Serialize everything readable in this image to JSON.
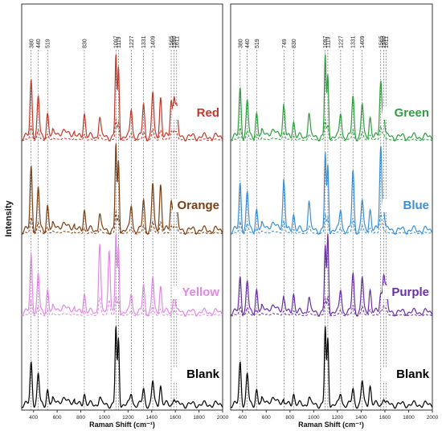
{
  "chart_data": {
    "type": "line",
    "ylabel": "Intensity",
    "colors": {
      "Red": "#c0392b",
      "Orange": "#7b3f14",
      "Yellow": "#e08ae6",
      "Blank": "#000000",
      "Green": "#2e9e3e",
      "Blue": "#3a8fd6",
      "Purple": "#6a2ea6"
    },
    "panels": [
      {
        "xlabel": "Raman Shift (cm⁻¹)",
        "xlim": [
          300,
          2000
        ],
        "xticks": [
          "400",
          "600",
          "800",
          "1000",
          "1200",
          "1400",
          "1600",
          "1800",
          "2000"
        ],
        "peak_labels": [
          "380",
          "440",
          "519",
          "830",
          "1097",
          "1119",
          "1227",
          "1331",
          "1409",
          "1565",
          "1590",
          "1611"
        ],
        "series": [
          {
            "name": "Red",
            "peaks": [
              [
                380,
                0.7
              ],
              [
                440,
                0.5
              ],
              [
                519,
                0.3
              ],
              [
                830,
                0.3
              ],
              [
                960,
                0.25
              ],
              [
                1097,
                1.0
              ],
              [
                1119,
                0.85
              ],
              [
                1227,
                0.35
              ],
              [
                1331,
                0.4
              ],
              [
                1409,
                0.55
              ],
              [
                1475,
                0.5
              ],
              [
                1565,
                0.45
              ],
              [
                1590,
                0.5
              ],
              [
                1611,
                0.35
              ]
            ]
          },
          {
            "name": "Orange",
            "peaks": [
              [
                380,
                0.75
              ],
              [
                440,
                0.5
              ],
              [
                519,
                0.3
              ],
              [
                830,
                0.25
              ],
              [
                960,
                0.2
              ],
              [
                1097,
                1.0
              ],
              [
                1119,
                0.8
              ],
              [
                1227,
                0.3
              ],
              [
                1331,
                0.35
              ],
              [
                1409,
                0.55
              ],
              [
                1475,
                0.55
              ],
              [
                1565,
                0.35
              ],
              [
                1590,
                0.35
              ],
              [
                1611,
                0.25
              ]
            ]
          },
          {
            "name": "Yellow",
            "peaks": [
              [
                380,
                0.75
              ],
              [
                440,
                0.5
              ],
              [
                519,
                0.3
              ],
              [
                830,
                0.25
              ],
              [
                960,
                0.9
              ],
              [
                1040,
                0.85
              ],
              [
                1097,
                1.0
              ],
              [
                1119,
                0.85
              ],
              [
                1227,
                0.25
              ],
              [
                1331,
                0.35
              ],
              [
                1409,
                0.45
              ],
              [
                1475,
                0.35
              ],
              [
                1590,
                0.3
              ]
            ]
          },
          {
            "name": "Blank",
            "peaks": [
              [
                380,
                0.55
              ],
              [
                440,
                0.4
              ],
              [
                519,
                0.2
              ],
              [
                830,
                0.15
              ],
              [
                960,
                0.1
              ],
              [
                1097,
                1.0
              ],
              [
                1119,
                0.85
              ],
              [
                1227,
                0.15
              ],
              [
                1331,
                0.2
              ],
              [
                1409,
                0.3
              ],
              [
                1475,
                0.25
              ],
              [
                1590,
                0.1
              ]
            ]
          }
        ]
      },
      {
        "xlabel": "Raman Shift (cm⁻¹)",
        "xlim": [
          300,
          2000
        ],
        "xticks": [
          "400",
          "600",
          "800",
          "1000",
          "1200",
          "1400",
          "1600",
          "1800",
          "2000"
        ],
        "peak_labels": [
          "380",
          "440",
          "519",
          "749",
          "830",
          "1097",
          "1119",
          "1227",
          "1331",
          "1409",
          "1565",
          "1590",
          "1611"
        ],
        "series": [
          {
            "name": "Green",
            "peaks": [
              [
                380,
                0.6
              ],
              [
                440,
                0.45
              ],
              [
                519,
                0.3
              ],
              [
                749,
                0.35
              ],
              [
                830,
                0.2
              ],
              [
                960,
                0.3
              ],
              [
                1097,
                1.0
              ],
              [
                1119,
                0.75
              ],
              [
                1227,
                0.3
              ],
              [
                1331,
                0.5
              ],
              [
                1409,
                0.4
              ],
              [
                1475,
                0.25
              ],
              [
                1565,
                0.7
              ],
              [
                1590,
                0.3
              ]
            ]
          },
          {
            "name": "Blue",
            "peaks": [
              [
                380,
                0.55
              ],
              [
                440,
                0.45
              ],
              [
                519,
                0.25
              ],
              [
                749,
                0.55
              ],
              [
                830,
                0.2
              ],
              [
                960,
                0.35
              ],
              [
                1097,
                0.9
              ],
              [
                1119,
                0.75
              ],
              [
                1227,
                0.25
              ],
              [
                1331,
                0.7
              ],
              [
                1409,
                0.35
              ],
              [
                1475,
                0.25
              ],
              [
                1565,
                1.0
              ],
              [
                1590,
                0.25
              ]
            ]
          },
          {
            "name": "Purple",
            "peaks": [
              [
                380,
                0.45
              ],
              [
                440,
                0.4
              ],
              [
                519,
                0.3
              ],
              [
                749,
                0.15
              ],
              [
                830,
                0.25
              ],
              [
                960,
                0.2
              ],
              [
                1097,
                0.85
              ],
              [
                1119,
                1.0
              ],
              [
                1227,
                0.3
              ],
              [
                1331,
                0.5
              ],
              [
                1409,
                0.45
              ],
              [
                1475,
                0.3
              ],
              [
                1565,
                0.25
              ],
              [
                1590,
                0.5
              ],
              [
                1611,
                0.3
              ]
            ]
          },
          {
            "name": "Blank",
            "peaks": [
              [
                380,
                0.55
              ],
              [
                440,
                0.4
              ],
              [
                519,
                0.2
              ],
              [
                830,
                0.15
              ],
              [
                960,
                0.1
              ],
              [
                1097,
                1.0
              ],
              [
                1119,
                0.85
              ],
              [
                1227,
                0.15
              ],
              [
                1331,
                0.2
              ],
              [
                1409,
                0.3
              ],
              [
                1475,
                0.25
              ],
              [
                1590,
                0.1
              ]
            ]
          }
        ]
      }
    ]
  }
}
